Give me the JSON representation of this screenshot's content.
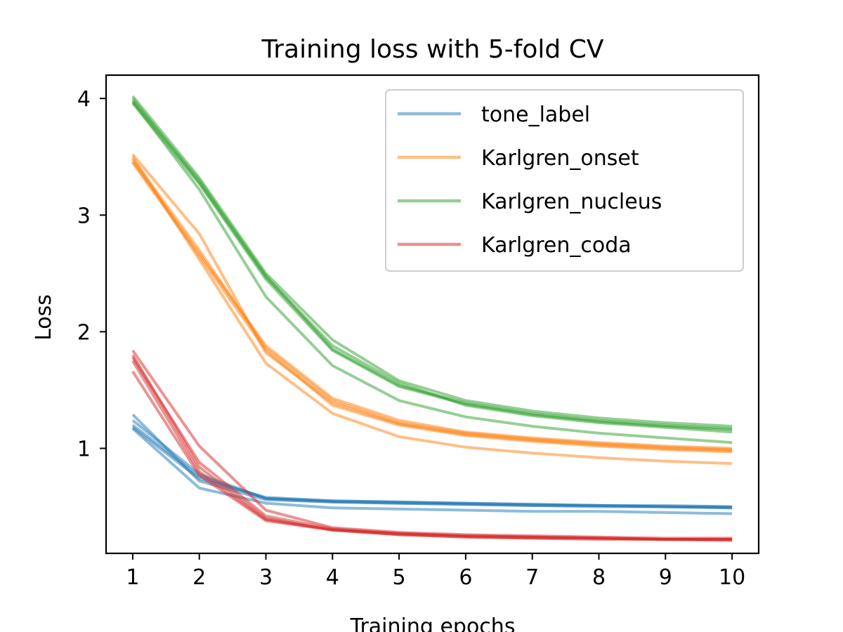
{
  "chart_data": {
    "type": "line",
    "title": "Training loss with 5-fold CV",
    "xlabel": "Training epochs",
    "ylabel": "Loss",
    "x": [
      1,
      2,
      3,
      4,
      5,
      6,
      7,
      8,
      9,
      10
    ],
    "xlim": [
      0.6,
      10.4
    ],
    "ylim": [
      0.1,
      4.2
    ],
    "xticks": [
      1,
      2,
      3,
      4,
      5,
      6,
      7,
      8,
      9,
      10
    ],
    "yticks": [
      1,
      2,
      3,
      4
    ],
    "grid": false,
    "legend_position": "upper right",
    "series": [
      {
        "name": "tone_label",
        "color": "#1f77b4",
        "folds": [
          [
            1.18,
            0.74,
            0.58,
            0.55,
            0.54,
            0.53,
            0.52,
            0.51,
            0.51,
            0.5
          ],
          [
            1.2,
            0.76,
            0.57,
            0.55,
            0.54,
            0.53,
            0.52,
            0.51,
            0.5,
            0.5
          ],
          [
            1.24,
            0.78,
            0.57,
            0.54,
            0.53,
            0.52,
            0.51,
            0.51,
            0.5,
            0.49
          ],
          [
            1.29,
            0.72,
            0.56,
            0.54,
            0.53,
            0.52,
            0.51,
            0.5,
            0.5,
            0.49
          ],
          [
            1.17,
            0.66,
            0.53,
            0.49,
            0.48,
            0.47,
            0.46,
            0.46,
            0.45,
            0.44
          ]
        ]
      },
      {
        "name": "Karlgren_onset",
        "color": "#ff7f0e",
        "folds": [
          [
            3.46,
            2.67,
            1.88,
            1.43,
            1.24,
            1.14,
            1.09,
            1.05,
            1.02,
            1.0
          ],
          [
            3.48,
            2.7,
            1.86,
            1.41,
            1.22,
            1.13,
            1.08,
            1.04,
            1.01,
            0.99
          ],
          [
            3.52,
            2.84,
            1.82,
            1.39,
            1.21,
            1.12,
            1.07,
            1.03,
            1.0,
            0.98
          ],
          [
            3.45,
            2.65,
            1.84,
            1.37,
            1.2,
            1.11,
            1.06,
            1.02,
            0.99,
            0.97
          ],
          [
            3.5,
            2.62,
            1.73,
            1.3,
            1.1,
            1.01,
            0.96,
            0.92,
            0.89,
            0.87
          ]
        ]
      },
      {
        "name": "Karlgren_nucleus",
        "color": "#2ca02c",
        "folds": [
          [
            3.98,
            3.3,
            2.48,
            1.85,
            1.54,
            1.39,
            1.3,
            1.24,
            1.2,
            1.17
          ],
          [
            4.02,
            3.32,
            2.5,
            1.93,
            1.58,
            1.41,
            1.32,
            1.26,
            1.22,
            1.19
          ],
          [
            3.96,
            3.27,
            2.45,
            1.84,
            1.53,
            1.38,
            1.29,
            1.23,
            1.19,
            1.16
          ],
          [
            4.0,
            3.28,
            2.47,
            1.88,
            1.56,
            1.37,
            1.28,
            1.22,
            1.18,
            1.14
          ],
          [
            3.97,
            3.22,
            2.3,
            1.71,
            1.41,
            1.27,
            1.19,
            1.13,
            1.09,
            1.05
          ]
        ]
      },
      {
        "name": "Karlgren_coda",
        "color": "#d62728",
        "folds": [
          [
            1.84,
            1.02,
            0.47,
            0.32,
            0.28,
            0.26,
            0.25,
            0.24,
            0.23,
            0.23
          ],
          [
            1.78,
            0.88,
            0.42,
            0.31,
            0.27,
            0.25,
            0.24,
            0.23,
            0.22,
            0.22
          ],
          [
            1.8,
            0.84,
            0.4,
            0.3,
            0.27,
            0.25,
            0.24,
            0.23,
            0.22,
            0.22
          ],
          [
            1.75,
            0.8,
            0.39,
            0.3,
            0.26,
            0.24,
            0.23,
            0.23,
            0.22,
            0.22
          ],
          [
            1.66,
            0.77,
            0.38,
            0.3,
            0.26,
            0.24,
            0.23,
            0.22,
            0.22,
            0.21
          ]
        ]
      }
    ]
  }
}
